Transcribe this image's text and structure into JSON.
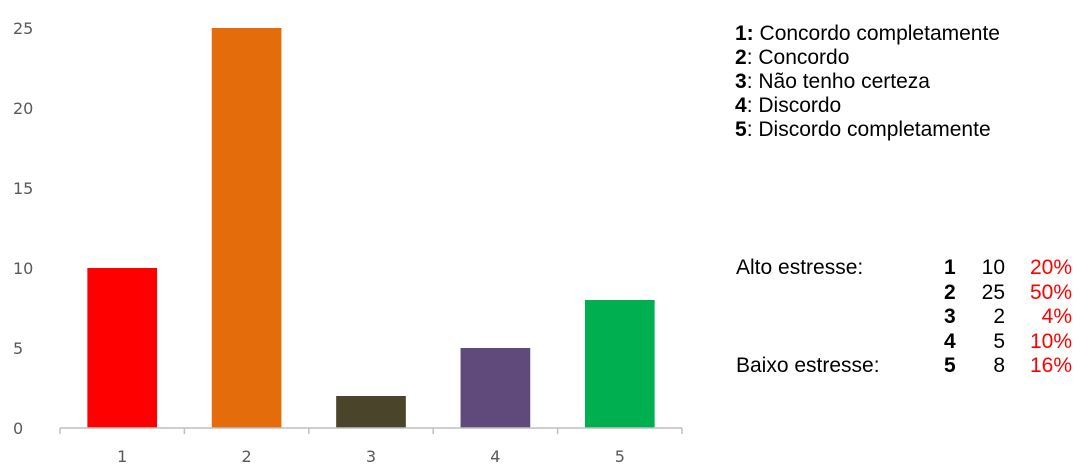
{
  "chart_data": {
    "type": "bar",
    "categories": [
      "1",
      "2",
      "3",
      "4",
      "5"
    ],
    "values": [
      10,
      25,
      2,
      5,
      8
    ],
    "colors": [
      "#ff0000",
      "#e46c0a",
      "#4a452a",
      "#604a7b",
      "#00b050"
    ],
    "ylim": [
      0,
      25
    ],
    "yticks": [
      0,
      5,
      10,
      15,
      20,
      25
    ],
    "ytick_labels": [
      "0",
      "5",
      "10",
      "15",
      "20",
      "25"
    ],
    "grid": false,
    "title": "",
    "xlabel": "",
    "ylabel": ""
  },
  "legend": [
    {
      "code": "1:",
      "text": " Concordo completamente"
    },
    {
      "code": "2",
      "text": ": Concordo"
    },
    {
      "code": "3",
      "text": ": Não tenho certeza"
    },
    {
      "code": "4",
      "text": ": Discordo"
    },
    {
      "code": "5",
      "text": ": Discordo completamente"
    }
  ],
  "summary": [
    {
      "label": "Alto estresse:",
      "code": "1",
      "count": "10",
      "pct": "20%"
    },
    {
      "label": "",
      "code": "2",
      "count": "25",
      "pct": "50%"
    },
    {
      "label": "",
      "code": "3",
      "count": "2",
      "pct": "4%"
    },
    {
      "label": "",
      "code": "4",
      "count": "5",
      "pct": "10%"
    },
    {
      "label": "Baixo estresse:",
      "code": "5",
      "count": "8",
      "pct": "16%"
    }
  ],
  "pct_color": "#ff0000"
}
